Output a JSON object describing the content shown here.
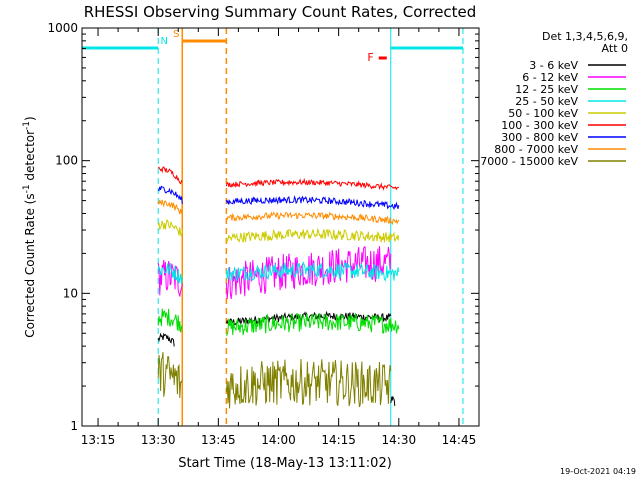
{
  "chart_data": {
    "type": "line",
    "title": "RHESSI Observing Summary Count Rates, Corrected",
    "xlabel": "Start Time (18-May-13 13:11:02)",
    "ylabel_main": "Corrected Count Rate (s",
    "ylabel_sup1": "-1",
    "ylabel_mid": " detector",
    "ylabel_sup2": "-1",
    "ylabel_end": ")",
    "yscale": "log",
    "ylim": [
      1,
      1000
    ],
    "xlim": [
      "13:11",
      "14:50"
    ],
    "grid": false,
    "y_ticks": [
      "1",
      "10",
      "100",
      "1000"
    ],
    "x_ticks": [
      "13:15",
      "13:30",
      "13:45",
      "14:00",
      "14:15",
      "14:30",
      "14:45"
    ],
    "legend_position": "right",
    "legend_header": [
      "Det 1,3,4,5,6,9,",
      "Att 0"
    ],
    "footer_date": "19-Oct-2021 04:19",
    "series": [
      {
        "name": "3 - 6 keV",
        "color": "#000000",
        "segments": [
          {
            "x": [
              "13:30",
              "13:34"
            ],
            "y": [
              4.5,
              4.2
            ]
          },
          {
            "x": [
              "13:47",
              "14:28"
            ],
            "y": [
              6,
              6.5
            ]
          },
          {
            "x": [
              "14:28",
              "14:29"
            ],
            "y": [
              1.5,
              1.5
            ]
          }
        ]
      },
      {
        "name": "6 - 12 keV",
        "color": "#ff00ff",
        "segments": [
          {
            "x": [
              "13:30",
              "13:36"
            ],
            "y": [
              13,
              12
            ]
          },
          {
            "x": [
              "13:47",
              "14:28"
            ],
            "y": [
              12,
              17
            ]
          }
        ]
      },
      {
        "name": "12 - 25 keV",
        "color": "#00dd00",
        "segments": [
          {
            "x": [
              "13:30",
              "13:36"
            ],
            "y": [
              6.5,
              5.8
            ]
          },
          {
            "x": [
              "13:47",
              "14:30"
            ],
            "y": [
              5.5,
              5.8
            ]
          }
        ]
      },
      {
        "name": "25 - 50 keV",
        "color": "#00e5e5",
        "segments": [
          {
            "x": [
              "13:30",
              "13:36"
            ],
            "y": [
              15,
              13
            ]
          },
          {
            "x": [
              "13:47",
              "14:30"
            ],
            "y": [
              14,
              14
            ]
          }
        ]
      },
      {
        "name": "50 - 100 keV",
        "color": "#cccc00",
        "segments": [
          {
            "x": [
              "13:30",
              "13:36"
            ],
            "y": [
              33,
              28
            ]
          },
          {
            "x": [
              "13:47",
              "14:30"
            ],
            "y": [
              26,
              26
            ]
          }
        ]
      },
      {
        "name": "100 - 300 keV",
        "color": "#ff0000",
        "segments": [
          {
            "x": [
              "13:30",
              "13:36"
            ],
            "y": [
              87,
              68
            ]
          },
          {
            "x": [
              "13:47",
              "14:30"
            ],
            "y": [
              66,
              62
            ]
          }
        ]
      },
      {
        "name": "300 - 800 keV",
        "color": "#0000ff",
        "segments": [
          {
            "x": [
              "13:30",
              "13:36"
            ],
            "y": [
              61,
              50
            ]
          },
          {
            "x": [
              "13:47",
              "14:30"
            ],
            "y": [
              49,
              45
            ]
          }
        ]
      },
      {
        "name": "800 - 7000 keV",
        "color": "#ff8c00",
        "segments": [
          {
            "x": [
              "13:30",
              "13:36"
            ],
            "y": [
              48,
              40
            ]
          },
          {
            "x": [
              "13:47",
              "14:30"
            ],
            "y": [
              37,
              35
            ]
          }
        ]
      },
      {
        "name": "7000 - 15000 keV",
        "color": "#808000",
        "segments": [
          {
            "x": [
              "13:30",
              "13:36"
            ],
            "y": [
              2.5,
              2
            ]
          },
          {
            "x": [
              "13:47",
              "14:28"
            ],
            "y": [
              2,
              2
            ]
          }
        ]
      }
    ],
    "annotations": [
      {
        "label": "N",
        "color": "#00e5e5",
        "kind": "night",
        "x": [
          "13:11",
          "13:30"
        ]
      },
      {
        "label": "",
        "color": "#00e5e5",
        "kind": "night",
        "x": [
          "14:28",
          "14:46"
        ]
      },
      {
        "label": "S",
        "color": "#ff8c00",
        "kind": "saa",
        "x": [
          "13:36",
          "13:47"
        ]
      },
      {
        "label": "F",
        "color": "#ff0000",
        "kind": "flare",
        "x": [
          "14:25",
          "14:27"
        ]
      }
    ]
  }
}
